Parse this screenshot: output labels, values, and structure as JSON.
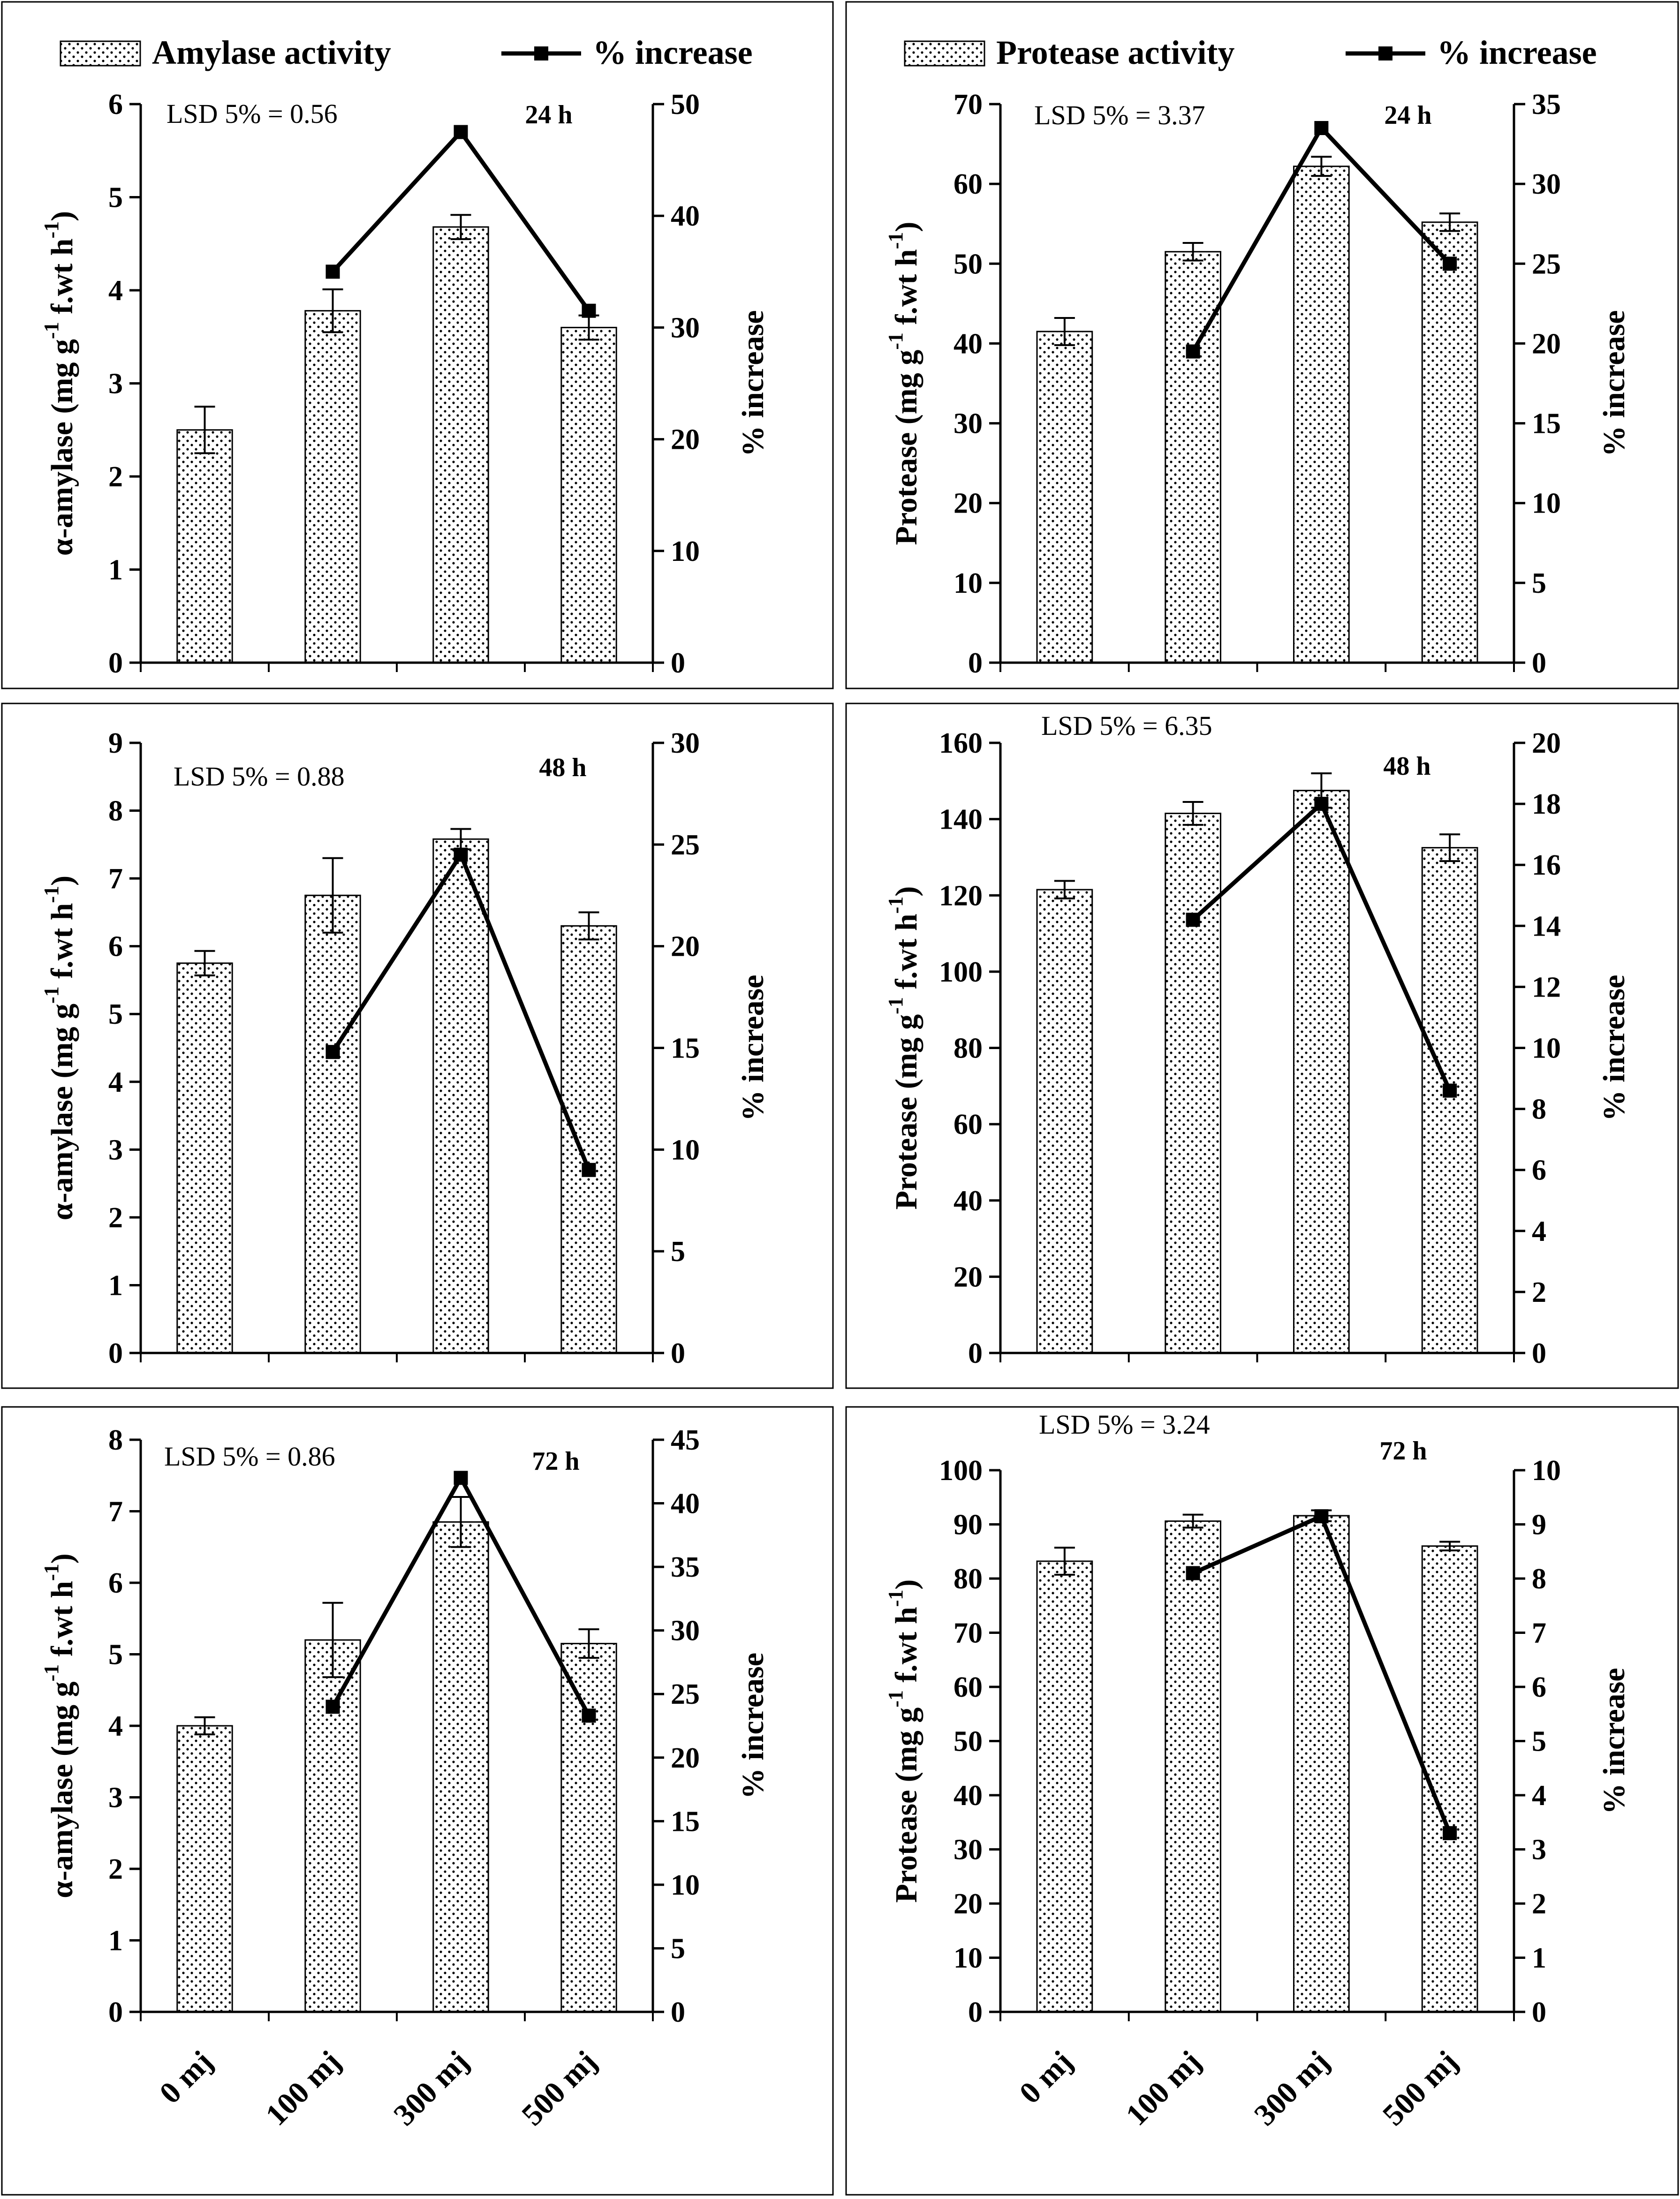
{
  "chart_data": [
    {
      "id": "amylase-24h",
      "type": "bar",
      "categories": [
        "0 mj",
        "100 mj",
        "300 mj",
        "500 mj"
      ],
      "bars": [
        2.5,
        3.78,
        4.68,
        3.6
      ],
      "errors": [
        0.25,
        0.23,
        0.13,
        0.13
      ],
      "pct": [
        null,
        35,
        47.5,
        31.5
      ],
      "y_ticks": [
        "0",
        "1",
        "2",
        "3",
        "4",
        "5",
        "6"
      ],
      "y_max": 6,
      "y2_ticks": [
        "0",
        "10",
        "20",
        "30",
        "40",
        "50"
      ],
      "y2_max": 50,
      "ylabel": "α-amylase (mg g",
      "ylabel_sup": "-1",
      "ylabel_tail": " f.wt h",
      "ylabel_sup2": "-1",
      "ylabel_close": ")",
      "y2label": "% increase",
      "lsd": "LSD 5% = 0.56",
      "time": "24 h",
      "legend": true,
      "legend_bar": "Amylase activity",
      "legend_line": "% increase",
      "legend_position": "top",
      "show_categories": false
    },
    {
      "id": "protease-24h",
      "type": "bar",
      "categories": [
        "0 mj",
        "100 mj",
        "300 mj",
        "500 mj"
      ],
      "bars": [
        41.5,
        51.5,
        62.2,
        55.2
      ],
      "errors": [
        1.7,
        1.1,
        1.2,
        1.1
      ],
      "pct": [
        null,
        19.5,
        33.5,
        25
      ],
      "y_ticks": [
        "0",
        "10",
        "20",
        "30",
        "40",
        "50",
        "60",
        "70"
      ],
      "y_max": 70,
      "y2_ticks": [
        "0",
        "5",
        "10",
        "15",
        "20",
        "25",
        "30",
        "35"
      ],
      "y2_max": 35,
      "ylabel": "Protease (mg g",
      "ylabel_sup": "-1",
      "ylabel_tail": " f.wt h",
      "ylabel_sup2": "-1",
      "ylabel_close": ")",
      "y2label": "% increase",
      "lsd": "LSD 5% = 3.37",
      "time": "24 h",
      "legend": true,
      "legend_bar": "Protease activity",
      "legend_line": "% increase",
      "legend_position": "top",
      "show_categories": false
    },
    {
      "id": "amylase-48h",
      "type": "bar",
      "categories": [
        "0 mj",
        "100 mj",
        "300 mj",
        "500 mj"
      ],
      "bars": [
        5.75,
        6.75,
        7.58,
        6.3
      ],
      "errors": [
        0.18,
        0.55,
        0.15,
        0.2
      ],
      "pct": [
        null,
        14.8,
        24.5,
        9
      ],
      "y_ticks": [
        "0",
        "1",
        "2",
        "3",
        "4",
        "5",
        "6",
        "7",
        "8",
        "9"
      ],
      "y_max": 9,
      "y2_ticks": [
        "0",
        "5",
        "10",
        "15",
        "20",
        "25",
        "30"
      ],
      "y2_max": 30,
      "ylabel": "α-amylase (mg g",
      "ylabel_sup": "-1",
      "ylabel_tail": " f.wt h",
      "ylabel_sup2": "-1",
      "ylabel_close": ")",
      "y2label": "% increase",
      "lsd": "LSD 5% = 0.88",
      "time": "48 h",
      "legend": false,
      "show_categories": false
    },
    {
      "id": "protease-48h",
      "type": "bar",
      "categories": [
        "0 mj",
        "100 mj",
        "300 mj",
        "500 mj"
      ],
      "bars": [
        121.5,
        141.5,
        147.5,
        132.5
      ],
      "errors": [
        2.3,
        3.0,
        4.5,
        3.5
      ],
      "pct": [
        null,
        14.2,
        18,
        8.6
      ],
      "y_ticks": [
        "0",
        "20",
        "40",
        "60",
        "80",
        "100",
        "120",
        "140",
        "160"
      ],
      "y_max": 160,
      "y2_ticks": [
        "0",
        "2",
        "4",
        "6",
        "8",
        "10",
        "12",
        "14",
        "16",
        "18",
        "20"
      ],
      "y2_max": 20,
      "ylabel": "Protease (mg g",
      "ylabel_sup": "-1",
      "ylabel_tail": " f.wt h",
      "ylabel_sup2": "-1",
      "ylabel_close": ")",
      "y2label": "% increase",
      "lsd": "LSD 5% = 6.35",
      "time": "48 h",
      "legend": false,
      "show_categories": false
    },
    {
      "id": "amylase-72h",
      "type": "bar",
      "categories": [
        "0 mj",
        "100 mj",
        "300 mj",
        "500 mj"
      ],
      "bars": [
        4.0,
        5.2,
        6.85,
        5.15
      ],
      "errors": [
        0.12,
        0.52,
        0.35,
        0.2
      ],
      "pct": [
        null,
        24,
        42,
        23.3
      ],
      "y_ticks": [
        "0",
        "1",
        "2",
        "3",
        "4",
        "5",
        "6",
        "7",
        "8"
      ],
      "y_max": 8,
      "y2_ticks": [
        "0",
        "5",
        "10",
        "15",
        "20",
        "25",
        "30",
        "35",
        "40",
        "45"
      ],
      "y2_max": 45,
      "ylabel": "α-amylase (mg g",
      "ylabel_sup": "-1",
      "ylabel_tail": " f.wt h",
      "ylabel_sup2": "-1",
      "ylabel_close": ")",
      "y2label": "% increase",
      "lsd": "LSD 5% = 0.86",
      "time": "72 h",
      "legend": false,
      "show_categories": true
    },
    {
      "id": "protease-72h",
      "type": "bar",
      "categories": [
        "0 mj",
        "100 mj",
        "300 mj",
        "500 mj"
      ],
      "bars": [
        83.2,
        90.6,
        91.6,
        86.0
      ],
      "errors": [
        2.5,
        1.2,
        1.0,
        0.8
      ],
      "pct": [
        null,
        8.1,
        9.15,
        3.3
      ],
      "y_ticks": [
        "0",
        "10",
        "20",
        "30",
        "40",
        "50",
        "60",
        "70",
        "80",
        "90",
        "100"
      ],
      "y_max": 100,
      "y2_ticks": [
        "0",
        "1",
        "2",
        "3",
        "4",
        "5",
        "6",
        "7",
        "8",
        "9",
        "10"
      ],
      "y2_max": 10,
      "ylabel": "Protease (mg g",
      "ylabel_sup": "-1",
      "ylabel_tail": " f.wt h",
      "ylabel_sup2": "-1",
      "ylabel_close": ")",
      "y2label": "% increase",
      "lsd": "LSD 5% = 3.24",
      "time": "72 h",
      "legend": false,
      "show_categories": true
    }
  ]
}
